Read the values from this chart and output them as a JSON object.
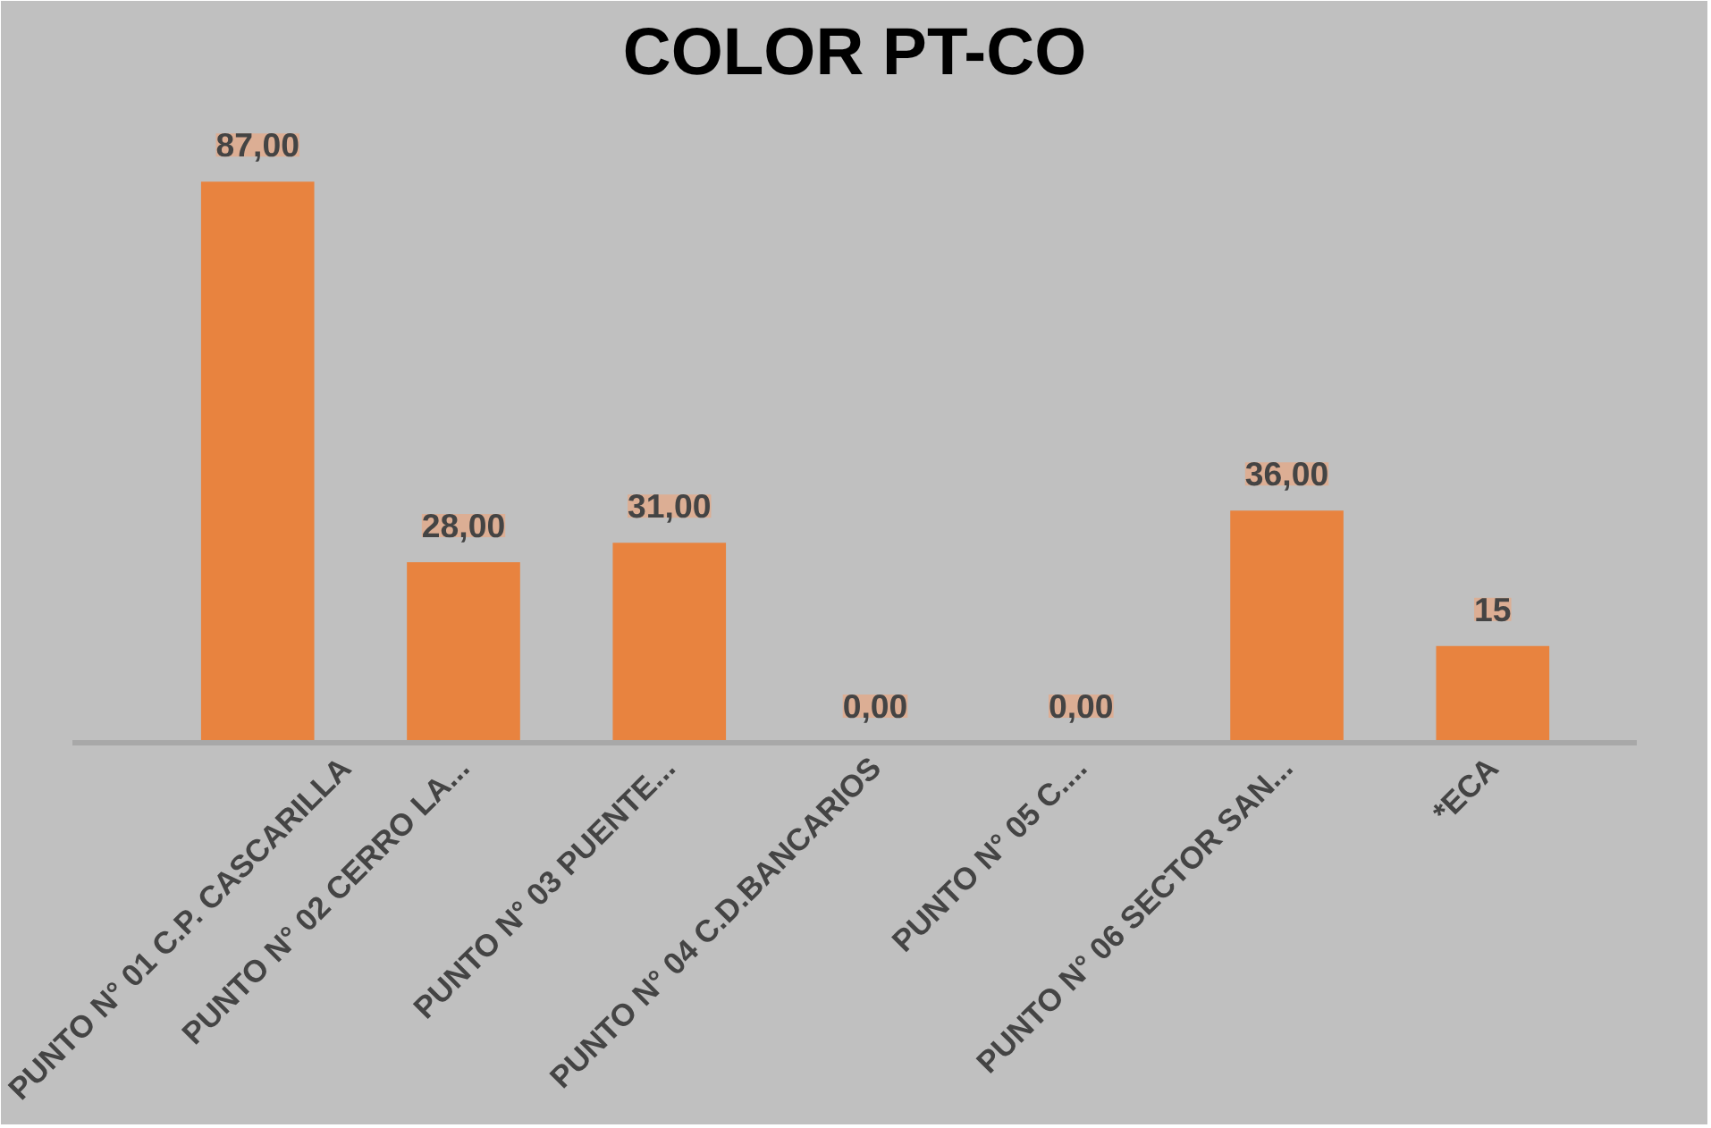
{
  "chart_data": {
    "type": "bar",
    "title": "COLOR PT-CO",
    "categories": [
      "PUNTO N° 01 C.P. CASCARILLA",
      "PUNTO N° 02 CERRO LA...",
      "PUNTO N° 03 PUENTE...",
      "PUNTO N° 04 C.D.BANCARIOS",
      "PUNTO N° 05 C....",
      "PUNTO N° 06 SECTOR SAN...",
      "*ECA"
    ],
    "values": [
      87,
      28,
      31,
      0,
      0,
      36,
      15
    ],
    "value_labels": [
      "87,00",
      "28,00",
      "31,00",
      "0,00",
      "0,00",
      "36,00",
      "15"
    ],
    "color": "#e8833f",
    "grid": false,
    "legend": false
  }
}
